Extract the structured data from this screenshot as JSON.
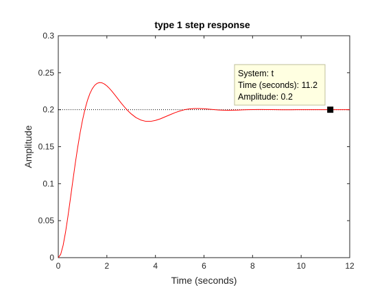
{
  "chart_data": {
    "type": "line",
    "title": "type 1 step response",
    "xlabel": "Time (seconds)",
    "ylabel": "Amplitude",
    "xlim": [
      0,
      12
    ],
    "ylim": [
      0,
      0.3
    ],
    "xticks": [
      "0",
      "2",
      "4",
      "6",
      "8",
      "10",
      "12"
    ],
    "yticks": [
      "0",
      "0.05",
      "0.1",
      "0.15",
      "0.2",
      "0.25",
      "0.3"
    ],
    "grid": false,
    "steady_state": 0.2,
    "series": [
      {
        "color": "#ff0000",
        "x": [
          0,
          0.1,
          0.2,
          0.3,
          0.4,
          0.5,
          0.6,
          0.7,
          0.8,
          0.9,
          1.0,
          1.1,
          1.2,
          1.3,
          1.4,
          1.5,
          1.6,
          1.7,
          1.8,
          1.9,
          2.0,
          2.1,
          2.2,
          2.3,
          2.4,
          2.5,
          2.6,
          2.7,
          2.8,
          2.9,
          3.0,
          3.2,
          3.4,
          3.6,
          3.8,
          4.0,
          4.2,
          4.4,
          4.6,
          4.8,
          5.0,
          5.2,
          5.4,
          5.6,
          5.8,
          6.0,
          6.2,
          6.4,
          6.6,
          6.8,
          7.0,
          7.2,
          7.4,
          7.6,
          7.8,
          8.0,
          8.2,
          8.4,
          8.6,
          8.8,
          9.0,
          9.2,
          9.4,
          9.6,
          9.8,
          10.0,
          10.2,
          10.4,
          10.6,
          10.8,
          11.0,
          11.2,
          11.4,
          11.6,
          11.8,
          12.0
        ],
        "y": [
          0,
          0.0045,
          0.0167,
          0.0347,
          0.0564,
          0.08,
          0.1041,
          0.1275,
          0.1493,
          0.169,
          0.1862,
          0.2007,
          0.2125,
          0.2217,
          0.2284,
          0.233,
          0.2357,
          0.2367,
          0.2363,
          0.2347,
          0.2322,
          0.229,
          0.2253,
          0.2212,
          0.217,
          0.2128,
          0.2086,
          0.2046,
          0.2009,
          0.1975,
          0.1944,
          0.1893,
          0.186,
          0.1843,
          0.1842,
          0.1855,
          0.1876,
          0.1904,
          0.1932,
          0.1959,
          0.1982,
          0.2,
          0.2011,
          0.2016,
          0.2016,
          0.2013,
          0.2007,
          0.2001,
          0.1996,
          0.1993,
          0.1992,
          0.1993,
          0.1995,
          0.1998,
          0.2,
          0.2002,
          0.2003,
          0.2003,
          0.2002,
          0.2001,
          0.2,
          0.1999,
          0.1999,
          0.1999,
          0.2,
          0.2,
          0.2,
          0.2,
          0.2,
          0.2,
          0.2,
          0.2,
          0.2,
          0.2,
          0.2,
          0.2
        ]
      }
    ],
    "datatip": {
      "lines": [
        "System: t",
        "Time (seconds): 11.2",
        "Amplitude: 0.2"
      ],
      "x": 11.2,
      "y": 0.2
    }
  },
  "colors": {
    "line": "#ff0000",
    "axes": "#262626",
    "tooltip_bg": "#ffffe1",
    "tooltip_border": "#bfbf9a"
  }
}
